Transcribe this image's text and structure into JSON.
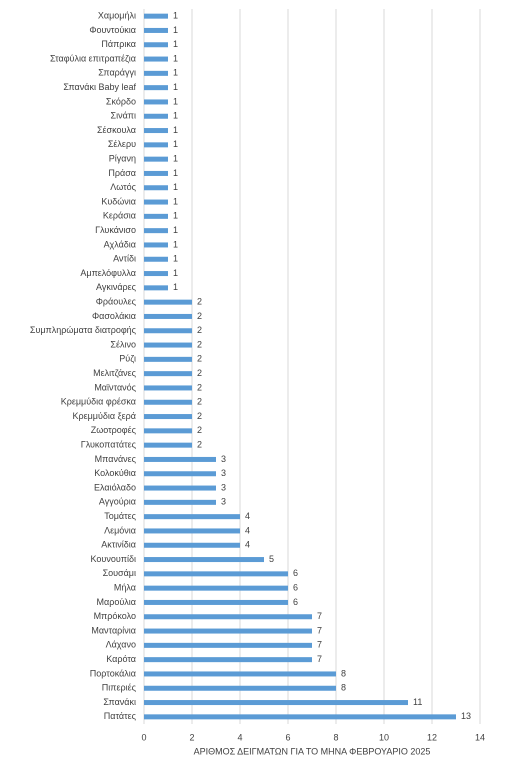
{
  "chart_data": {
    "type": "barh",
    "x_label": "ΑΡΙΘΜΟΣ ΔΕΙΓΜΑΤΩΝ ΓΙΑ ΤΟ ΜΗΝΑ ΦΕΒΡΟΥΑΡΙΟ 2025",
    "categories": [
      "Χαμομήλι",
      "Φουντούκια",
      "Πάπρικα",
      "Σταφύλια επιτραπέζια",
      "Σπαράγγι",
      "Σπανάκι Baby leaf",
      "Σκόρδο",
      "Σινάπι",
      "Σέσκουλα",
      "Σέλερυ",
      "Ρίγανη",
      "Πράσα",
      "Λωτός",
      "Κυδώνια",
      "Κεράσια",
      "Γλυκάνισο",
      "Αχλάδια",
      "Αντίδι",
      "Αμπελόφυλλα",
      "Αγκινάρες",
      "Φράουλες",
      "Φασολάκια",
      "Συμπληρώματα διατροφής",
      "Σέλινο",
      "Ρύζι",
      "Μελιτζάνες",
      "Μαϊντανός",
      "Κρεμμύδια φρέσκα",
      "Κρεμμύδια ξερά",
      "Ζωοτροφές",
      "Γλυκοπατάτες",
      "Μπανάνες",
      "Κολοκύθια",
      "Ελαιόλαδο",
      "Αγγούρια",
      "Τομάτες",
      "Λεμόνια",
      "Ακτινίδια",
      "Κουνουπίδι",
      "Σουσάμι",
      "Μήλα",
      "Μαρούλια",
      "Μπρόκολο",
      "Μανταρίνια",
      "Λάχανο",
      "Καρότα",
      "Πορτοκάλια",
      "Πιπεριές",
      "Σπανάκι",
      "Πατάτες"
    ],
    "values": [
      1,
      1,
      1,
      1,
      1,
      1,
      1,
      1,
      1,
      1,
      1,
      1,
      1,
      1,
      1,
      1,
      1,
      1,
      1,
      1,
      2,
      2,
      2,
      2,
      2,
      2,
      2,
      2,
      2,
      2,
      2,
      3,
      3,
      3,
      3,
      4,
      4,
      4,
      5,
      6,
      6,
      6,
      7,
      7,
      7,
      7,
      8,
      8,
      11,
      13
    ],
    "color": "#5b9bd5",
    "xlim": [
      0,
      14
    ],
    "xticks": [
      0,
      2,
      4,
      6,
      8,
      10,
      12,
      14
    ],
    "grid": true
  }
}
